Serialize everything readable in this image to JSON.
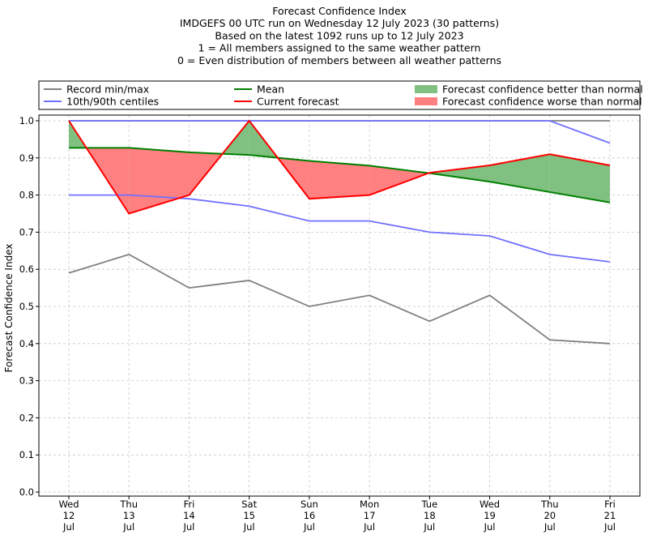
{
  "chart_data": {
    "type": "line",
    "title_lines": [
      "Forecast Confidence Index",
      "IMDGEFS 00 UTC run on Wednesday 12 July 2023 (30 patterns)",
      "Based on the latest 1092 runs up to 12 July 2023",
      "1 = All members assigned to the same weather pattern",
      "0 = Even distribution of members between all weather patterns"
    ],
    "ylabel": "Forecast Confidence Index",
    "ylim": [
      0,
      1.0
    ],
    "yticks": [
      0.0,
      0.1,
      0.2,
      0.3,
      0.4,
      0.5,
      0.6,
      0.7,
      0.8,
      0.9,
      1.0
    ],
    "ytick_labels": [
      "0.0",
      "0.1",
      "0.2",
      "0.3",
      "0.4",
      "0.5",
      "0.6",
      "0.7",
      "0.8",
      "0.9",
      "1.0"
    ],
    "grid": true,
    "legend_placement": "top",
    "categories": [
      [
        "Wed",
        "12",
        "Jul"
      ],
      [
        "Thu",
        "13",
        "Jul"
      ],
      [
        "Fri",
        "14",
        "Jul"
      ],
      [
        "Sat",
        "15",
        "Jul"
      ],
      [
        "Sun",
        "16",
        "Jul"
      ],
      [
        "Mon",
        "17",
        "Jul"
      ],
      [
        "Tue",
        "18",
        "Jul"
      ],
      [
        "Wed",
        "19",
        "Jul"
      ],
      [
        "Thu",
        "20",
        "Jul"
      ],
      [
        "Fri",
        "21",
        "Jul"
      ]
    ],
    "series": [
      {
        "name": "Record min/max",
        "key": "record_min",
        "color": "#808080",
        "values": [
          0.59,
          0.64,
          0.55,
          0.57,
          0.5,
          0.53,
          0.46,
          0.53,
          0.41,
          0.4
        ]
      },
      {
        "name": "",
        "key": "record_max",
        "color": "#808080",
        "values": [
          1.0,
          1.0,
          1.0,
          1.0,
          1.0,
          1.0,
          1.0,
          1.0,
          1.0,
          1.0
        ]
      },
      {
        "name": "10th/90th centiles",
        "key": "p10",
        "color": "#7070ff",
        "values": [
          0.8,
          0.8,
          0.79,
          0.77,
          0.73,
          0.73,
          0.7,
          0.69,
          0.64,
          0.62
        ]
      },
      {
        "name": "",
        "key": "p90",
        "color": "#7070ff",
        "values": [
          1.0,
          1.0,
          1.0,
          1.0,
          1.0,
          1.0,
          1.0,
          1.0,
          1.0,
          0.94
        ]
      },
      {
        "name": "Mean",
        "key": "mean",
        "color": "#008000",
        "values": [
          0.927,
          0.927,
          0.915,
          0.908,
          0.892,
          0.879,
          0.859,
          0.836,
          0.808,
          0.78
        ]
      },
      {
        "name": "Current forecast",
        "key": "current",
        "color": "#ff0000",
        "values": [
          1.0,
          0.75,
          0.8,
          1.0,
          0.79,
          0.8,
          0.86,
          0.88,
          0.91,
          0.88
        ]
      }
    ],
    "fills": [
      {
        "name": "Forecast confidence better than normal",
        "color": "#80c080"
      },
      {
        "name": "Forecast confidence worse than normal",
        "color": "#ff8080"
      }
    ]
  }
}
